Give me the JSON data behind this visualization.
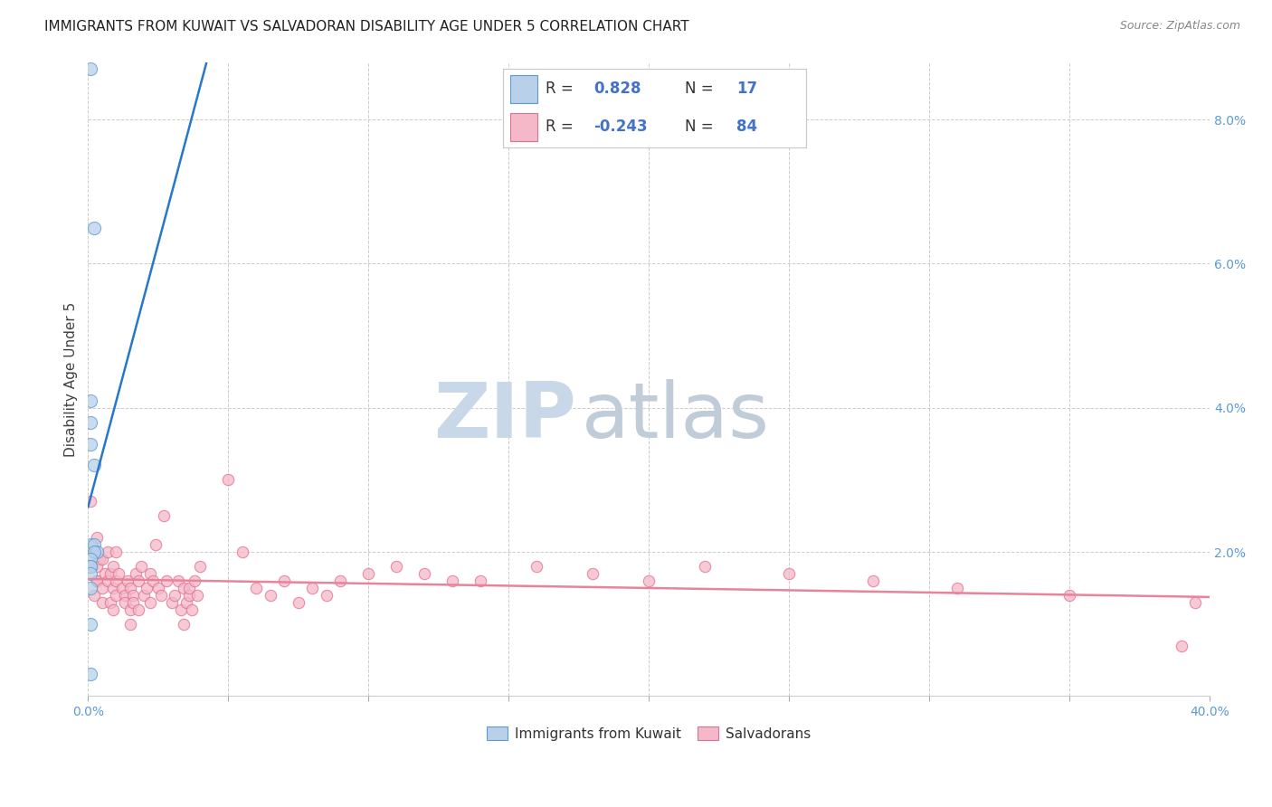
{
  "title": "IMMIGRANTS FROM KUWAIT VS SALVADORAN DISABILITY AGE UNDER 5 CORRELATION CHART",
  "source": "Source: ZipAtlas.com",
  "ylabel": "Disability Age Under 5",
  "xlim": [
    0.0,
    0.4
  ],
  "ylim": [
    0.0,
    0.088
  ],
  "xticks_major": [
    0.0,
    0.4
  ],
  "xticks_minor": [
    0.05,
    0.1,
    0.15,
    0.2,
    0.25,
    0.3,
    0.35
  ],
  "xticklabels_major": [
    "0.0%",
    "40.0%"
  ],
  "yticks": [
    0.0,
    0.02,
    0.04,
    0.06,
    0.08
  ],
  "yticklabels": [
    "",
    "2.0%",
    "4.0%",
    "6.0%",
    "8.0%"
  ],
  "kuwait_fill": "#b8d0ea",
  "kuwait_edge": "#5b9bd5",
  "salvador_fill": "#f4b8c8",
  "salvador_edge": "#e07090",
  "kuwait_line_color": "#2878c8",
  "salvador_line_color": "#e8849a",
  "tick_color": "#5b9bd5",
  "legend_text_color": "#333333",
  "legend_value_color": "#4472c4",
  "kuwait_R": 0.828,
  "kuwait_N": 17,
  "salvador_R": -0.243,
  "salvador_N": 84,
  "legend_label_kuwait": "Immigrants from Kuwait",
  "legend_label_salvador": "Salvadorans",
  "kuwait_x": [
    0.001,
    0.002,
    0.001,
    0.001,
    0.001,
    0.002,
    0.001,
    0.002,
    0.003,
    0.002,
    0.001,
    0.001,
    0.001,
    0.001,
    0.001,
    0.001,
    0.001
  ],
  "kuwait_y": [
    0.087,
    0.065,
    0.041,
    0.038,
    0.035,
    0.032,
    0.021,
    0.021,
    0.02,
    0.02,
    0.019,
    0.018,
    0.018,
    0.017,
    0.015,
    0.01,
    0.003
  ],
  "salvador_x": [
    0.001,
    0.001,
    0.002,
    0.003,
    0.002,
    0.003,
    0.004,
    0.003,
    0.005,
    0.003,
    0.005,
    0.005,
    0.006,
    0.007,
    0.007,
    0.008,
    0.008,
    0.009,
    0.009,
    0.009,
    0.01,
    0.01,
    0.01,
    0.011,
    0.012,
    0.013,
    0.013,
    0.014,
    0.015,
    0.015,
    0.015,
    0.016,
    0.016,
    0.017,
    0.018,
    0.018,
    0.019,
    0.02,
    0.021,
    0.022,
    0.022,
    0.023,
    0.024,
    0.025,
    0.026,
    0.027,
    0.028,
    0.03,
    0.031,
    0.032,
    0.033,
    0.034,
    0.034,
    0.035,
    0.036,
    0.036,
    0.037,
    0.038,
    0.039,
    0.04,
    0.05,
    0.055,
    0.06,
    0.065,
    0.07,
    0.075,
    0.08,
    0.085,
    0.09,
    0.1,
    0.11,
    0.12,
    0.13,
    0.14,
    0.16,
    0.18,
    0.2,
    0.22,
    0.25,
    0.28,
    0.31,
    0.35,
    0.39,
    0.395
  ],
  "salvador_y": [
    0.027,
    0.018,
    0.02,
    0.016,
    0.014,
    0.022,
    0.019,
    0.016,
    0.013,
    0.018,
    0.015,
    0.019,
    0.017,
    0.016,
    0.02,
    0.013,
    0.017,
    0.015,
    0.018,
    0.012,
    0.016,
    0.014,
    0.02,
    0.017,
    0.015,
    0.014,
    0.013,
    0.016,
    0.012,
    0.015,
    0.01,
    0.014,
    0.013,
    0.017,
    0.012,
    0.016,
    0.018,
    0.014,
    0.015,
    0.013,
    0.017,
    0.016,
    0.021,
    0.015,
    0.014,
    0.025,
    0.016,
    0.013,
    0.014,
    0.016,
    0.012,
    0.015,
    0.01,
    0.013,
    0.014,
    0.015,
    0.012,
    0.016,
    0.014,
    0.018,
    0.03,
    0.02,
    0.015,
    0.014,
    0.016,
    0.013,
    0.015,
    0.014,
    0.016,
    0.017,
    0.018,
    0.017,
    0.016,
    0.016,
    0.018,
    0.017,
    0.016,
    0.018,
    0.017,
    0.016,
    0.015,
    0.014,
    0.007,
    0.013
  ],
  "background_color": "#ffffff",
  "grid_color": "#cccccc",
  "watermark_zip": "ZIP",
  "watermark_atlas": "atlas",
  "watermark_color_zip": "#c8d8e8",
  "watermark_color_atlas": "#c0ccd8",
  "title_fontsize": 11,
  "axis_label_fontsize": 11,
  "tick_fontsize": 10,
  "dot_size": 80,
  "dot_alpha": 0.75,
  "line_width": 1.8
}
